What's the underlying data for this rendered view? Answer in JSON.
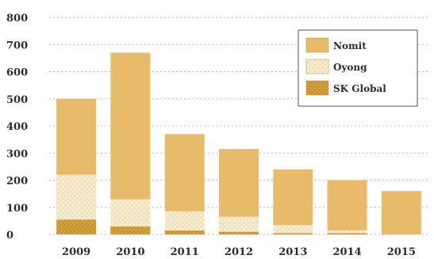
{
  "chart_data": {
    "type": "bar",
    "stacked": true,
    "categories": [
      "2009",
      "2010",
      "2011",
      "2012",
      "2013",
      "2014",
      "2015"
    ],
    "series": [
      {
        "name": "SK Global",
        "color": "#c9952e",
        "pattern": "dots-dense",
        "values": [
          55,
          30,
          15,
          10,
          5,
          5,
          0
        ]
      },
      {
        "name": "Oyong",
        "color": "#f3e3bd",
        "pattern": "dots-light",
        "values": [
          165,
          100,
          70,
          55,
          30,
          10,
          0
        ]
      },
      {
        "name": "Nomit",
        "color": "#e8bb6a",
        "pattern": "solid",
        "values": [
          280,
          540,
          285,
          250,
          205,
          185,
          160
        ]
      }
    ],
    "y_ticks": [
      "0",
      "100",
      "200",
      "300",
      "400",
      "500",
      "600",
      "700",
      "800"
    ],
    "ylim": [
      0,
      800
    ],
    "grid": true,
    "legend_position": "top-right",
    "title": "",
    "xlabel": "",
    "ylabel": ""
  }
}
